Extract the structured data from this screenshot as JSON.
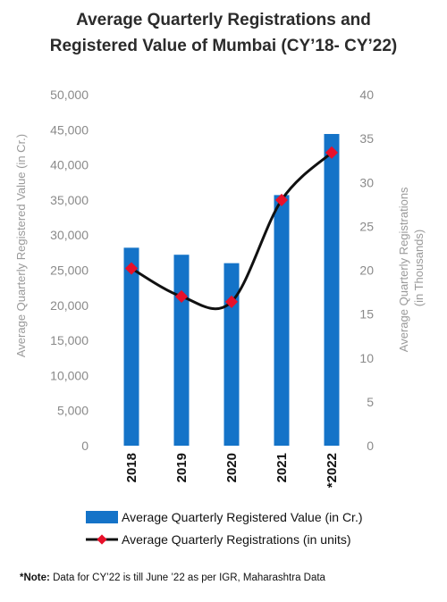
{
  "title_line1": "Average Quarterly Registrations and",
  "title_line2": "Registered Value of Mumbai (CY’18- CY’22)",
  "note_label": "*Note:",
  "note_text": " Data for CY’22 is till June ’22 as per IGR, Maharashtra Data",
  "colors": {
    "bar": "#1473c8",
    "line": "#111111",
    "marker": "#e8102a"
  },
  "chart_data": {
    "type": "bar+line",
    "categories": [
      "2018",
      "2019",
      "2020",
      "2021",
      "*2022"
    ],
    "y_left": {
      "label": "Average Quarterly Registered Value (in Cr.)",
      "ylim": [
        0,
        50000
      ],
      "ticks": [
        0,
        5000,
        10000,
        15000,
        20000,
        25000,
        30000,
        35000,
        40000,
        45000,
        50000
      ],
      "tick_labels": [
        "0",
        "5,000",
        "10,000",
        "15,000",
        "20,000",
        "25,000",
        "30,000",
        "35,000",
        "40,000",
        "45,000",
        "50,000"
      ]
    },
    "y_right": {
      "label_line1": "Average Quarterly Registrations",
      "label_line2": "(in Thousands)",
      "ylim": [
        0,
        40
      ],
      "ticks": [
        0,
        5,
        10,
        15,
        20,
        25,
        30,
        35,
        40
      ],
      "tick_labels": [
        "0",
        "5",
        "10",
        "15",
        "20",
        "25",
        "30",
        "35",
        "40"
      ]
    },
    "series": [
      {
        "name": "Average Quarterly Registered Value (in Cr.)",
        "type": "bar",
        "axis": "left",
        "values": [
          28200,
          27200,
          26000,
          35700,
          44400
        ]
      },
      {
        "name": "Average Quarterly Registrations (in units)",
        "type": "line",
        "axis": "right",
        "values": [
          20.2,
          17.0,
          16.4,
          28.0,
          33.4
        ]
      }
    ],
    "legend_position": "bottom"
  }
}
